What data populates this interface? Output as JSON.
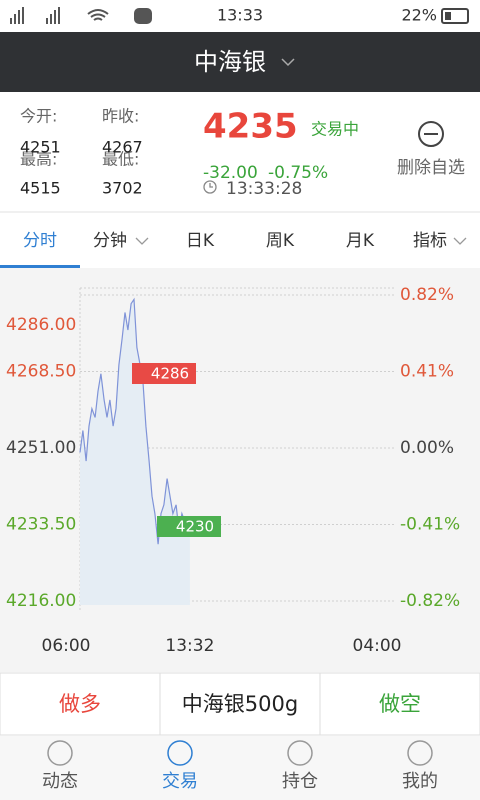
{
  "status_bar": {
    "time": "13:33",
    "battery": "22%"
  },
  "header": {
    "title": "中海银"
  },
  "quote": {
    "open_label": "今开:",
    "open": "4251",
    "prev_close_label": "昨收:",
    "prev_close": "4267",
    "high_label": "最高:",
    "high": "4515",
    "low_label": "最低:",
    "low": "3702",
    "price": "4235",
    "status": "交易中",
    "change": "-32.00",
    "change_pct": "-0.75%",
    "time": "13:33:28",
    "remove": "删除自选"
  },
  "tabs": [
    "分时",
    "分钟",
    "日K",
    "周K",
    "月K",
    "指标"
  ],
  "chart_data": {
    "type": "line",
    "x": [
      0,
      12,
      25,
      37,
      49,
      62,
      74,
      86,
      99,
      111,
      123,
      136,
      148,
      160,
      173,
      185,
      197,
      210,
      222,
      234,
      247,
      259,
      271,
      284,
      296,
      308,
      321,
      333,
      345,
      358,
      370,
      382,
      395,
      407,
      419,
      432,
      444,
      452
    ],
    "series": [
      {
        "color": "#7f93d8",
        "fill": "#e5edf4",
        "values": [
          4250,
          4255,
          4248,
          4256,
          4260,
          4258,
          4264,
          4268,
          4262,
          4258,
          4262,
          4256,
          4260,
          4270,
          4276,
          4282,
          4278,
          4284,
          4285,
          4274,
          4270,
          4266,
          4256,
          4248,
          4240,
          4236,
          4229,
          4236,
          4238,
          4244,
          4240,
          4236,
          4238,
          4232,
          4236,
          4234,
          4233,
          4233
        ]
      }
    ],
    "xlim": [
      0,
      1320
    ],
    "xticks": [
      {
        "value": 0,
        "label": "06:00"
      },
      {
        "value": 452,
        "label": "13:32"
      },
      {
        "value": 1320,
        "label": "04:00"
      }
    ],
    "ylim": [
      4216,
      4286
    ],
    "yticks": [
      {
        "value": 4216,
        "label": "4216.00"
      },
      {
        "value": 4233.5,
        "label": "4233.50"
      },
      {
        "value": 4251,
        "label": "4251.00"
      },
      {
        "value": 4268.5,
        "label": "4268.50"
      },
      {
        "value": 4286,
        "label": "4286.00"
      }
    ],
    "y2lim": [
      -0.82,
      0.82
    ],
    "y2ticks": [
      {
        "value": -0.82,
        "label": "-0.82%"
      },
      {
        "value": -0.41,
        "label": "-0.41%"
      },
      {
        "value": 0,
        "label": "0.00%"
      },
      {
        "value": 0.41,
        "label": "0.41%"
      },
      {
        "value": 0.82,
        "label": "0.82%"
      }
    ],
    "markers": [
      {
        "label": "4286",
        "color": "#e84a45"
      },
      {
        "label": "4230",
        "color": "#4cb050"
      }
    ],
    "up_color": "#e0583a",
    "down_color": "#5aa82a",
    "flat_color": "#444444",
    "grid": true
  },
  "actions": [
    "做多",
    "中海银500g",
    "做空"
  ],
  "nav": [
    "动态",
    "交易",
    "持仓",
    "我的"
  ]
}
